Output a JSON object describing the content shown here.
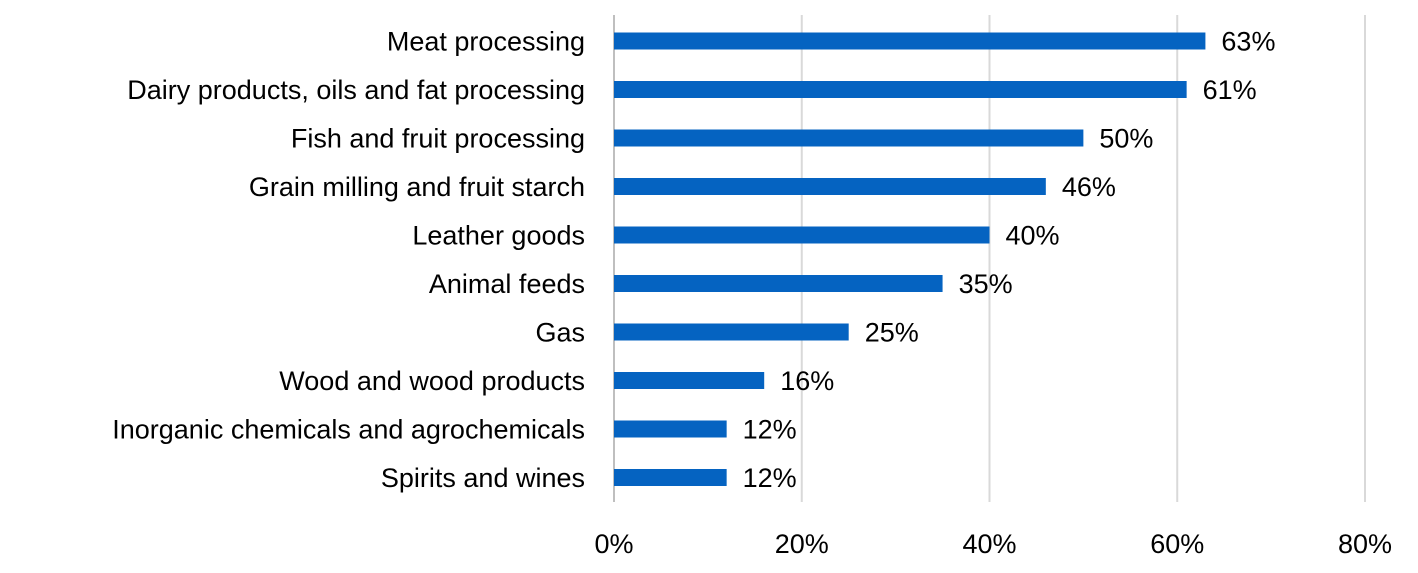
{
  "chart_data": {
    "type": "bar",
    "orientation": "horizontal",
    "title": "",
    "xlabel": "",
    "ylabel": "",
    "categories": [
      "Meat processing",
      "Dairy products, oils and fat processing",
      "Fish and fruit processing",
      "Grain milling and fruit starch",
      "Leather goods",
      "Animal feeds",
      "Gas",
      "Wood and wood products",
      "Inorganic chemicals and agrochemicals",
      "Spirits and wines"
    ],
    "values": [
      63,
      61,
      50,
      46,
      40,
      35,
      25,
      16,
      12,
      12
    ],
    "data_labels": [
      "63%",
      "61%",
      "50%",
      "46%",
      "40%",
      "35%",
      "25%",
      "16%",
      "12%",
      "12%"
    ],
    "xlim": [
      0,
      80
    ],
    "xticks": [
      0,
      20,
      40,
      60,
      80
    ],
    "xtick_labels": [
      "0%",
      "20%",
      "40%",
      "60%",
      "80%"
    ],
    "grid": "vertical",
    "legend": "none",
    "bar_color": "#0563C1",
    "grid_color": "#D9D9D9"
  }
}
